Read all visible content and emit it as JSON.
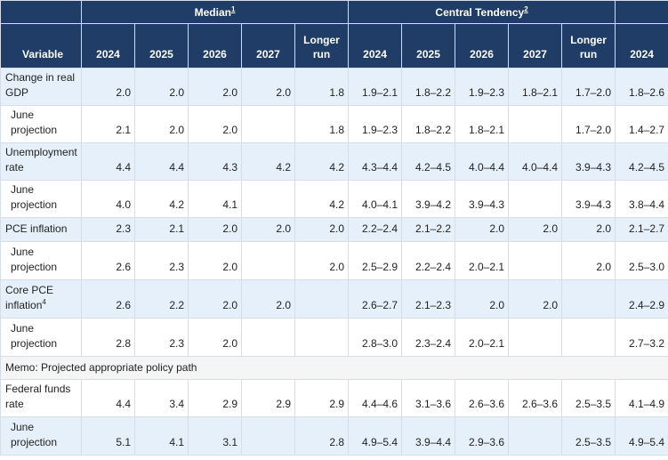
{
  "header": {
    "median_label": "Median",
    "median_note": "1",
    "central_label": "Central Tendency",
    "central_note": "2",
    "variable_label": "Variable",
    "median_cols": [
      "2024",
      "2025",
      "2026",
      "2027",
      "Longer run"
    ],
    "central_cols": [
      "2024",
      "2025",
      "2026",
      "2027",
      "Longer run"
    ],
    "range_cols": [
      "2024"
    ]
  },
  "rows": [
    {
      "label": "Change in real GDP",
      "note": "",
      "values": [
        "2.0",
        "2.0",
        "2.0",
        "2.0",
        "1.8",
        "1.9–2.1",
        "1.8–2.2",
        "1.9–2.3",
        "1.8–2.1",
        "1.7–2.0",
        "1.8–2.6"
      ]
    },
    {
      "label": "June projection",
      "note": "",
      "values": [
        "2.1",
        "2.0",
        "2.0",
        "",
        "1.8",
        "1.9–2.3",
        "1.8–2.2",
        "1.8–2.1",
        "",
        "1.7–2.0",
        "1.4–2.7"
      ]
    },
    {
      "label": "Unemployment rate",
      "note": "",
      "values": [
        "4.4",
        "4.4",
        "4.3",
        "4.2",
        "4.2",
        "4.3–4.4",
        "4.2–4.5",
        "4.0–4.4",
        "4.0–4.4",
        "3.9–4.3",
        "4.2–4.5"
      ]
    },
    {
      "label": "June projection",
      "note": "",
      "values": [
        "4.0",
        "4.2",
        "4.1",
        "",
        "4.2",
        "4.0–4.1",
        "3.9–4.2",
        "3.9–4.3",
        "",
        "3.9–4.3",
        "3.8–4.4"
      ]
    },
    {
      "label": "PCE inflation",
      "note": "",
      "values": [
        "2.3",
        "2.1",
        "2.0",
        "2.0",
        "2.0",
        "2.2–2.4",
        "2.1–2.2",
        "2.0",
        "2.0",
        "2.0",
        "2.1–2.7"
      ]
    },
    {
      "label": "June projection",
      "note": "",
      "values": [
        "2.6",
        "2.3",
        "2.0",
        "",
        "2.0",
        "2.5–2.9",
        "2.2–2.4",
        "2.0–2.1",
        "",
        "2.0",
        "2.5–3.0"
      ]
    },
    {
      "label": "Core PCE inflation",
      "note": "4",
      "values": [
        "2.6",
        "2.2",
        "2.0",
        "2.0",
        "",
        "2.6–2.7",
        "2.1–2.3",
        "2.0",
        "2.0",
        "",
        "2.4–2.9"
      ]
    },
    {
      "label": "June projection",
      "note": "",
      "values": [
        "2.8",
        "2.3",
        "2.0",
        "",
        "",
        "2.8–3.0",
        "2.3–2.4",
        "2.0–2.1",
        "",
        "",
        "2.7–3.2"
      ]
    },
    {
      "label": "Federal funds rate",
      "note": "",
      "values": [
        "4.4",
        "3.4",
        "2.9",
        "2.9",
        "2.9",
        "4.4–4.6",
        "3.1–3.6",
        "2.6–3.6",
        "2.6–3.6",
        "2.5–3.5",
        "4.1–4.9"
      ]
    },
    {
      "label": "June projection",
      "note": "",
      "values": [
        "5.1",
        "4.1",
        "3.1",
        "",
        "2.8",
        "4.9–5.4",
        "3.9–4.4",
        "2.9–3.6",
        "",
        "2.5–3.5",
        "4.9–5.4"
      ]
    }
  ],
  "memo": "Memo: Projected appropriate policy path"
}
